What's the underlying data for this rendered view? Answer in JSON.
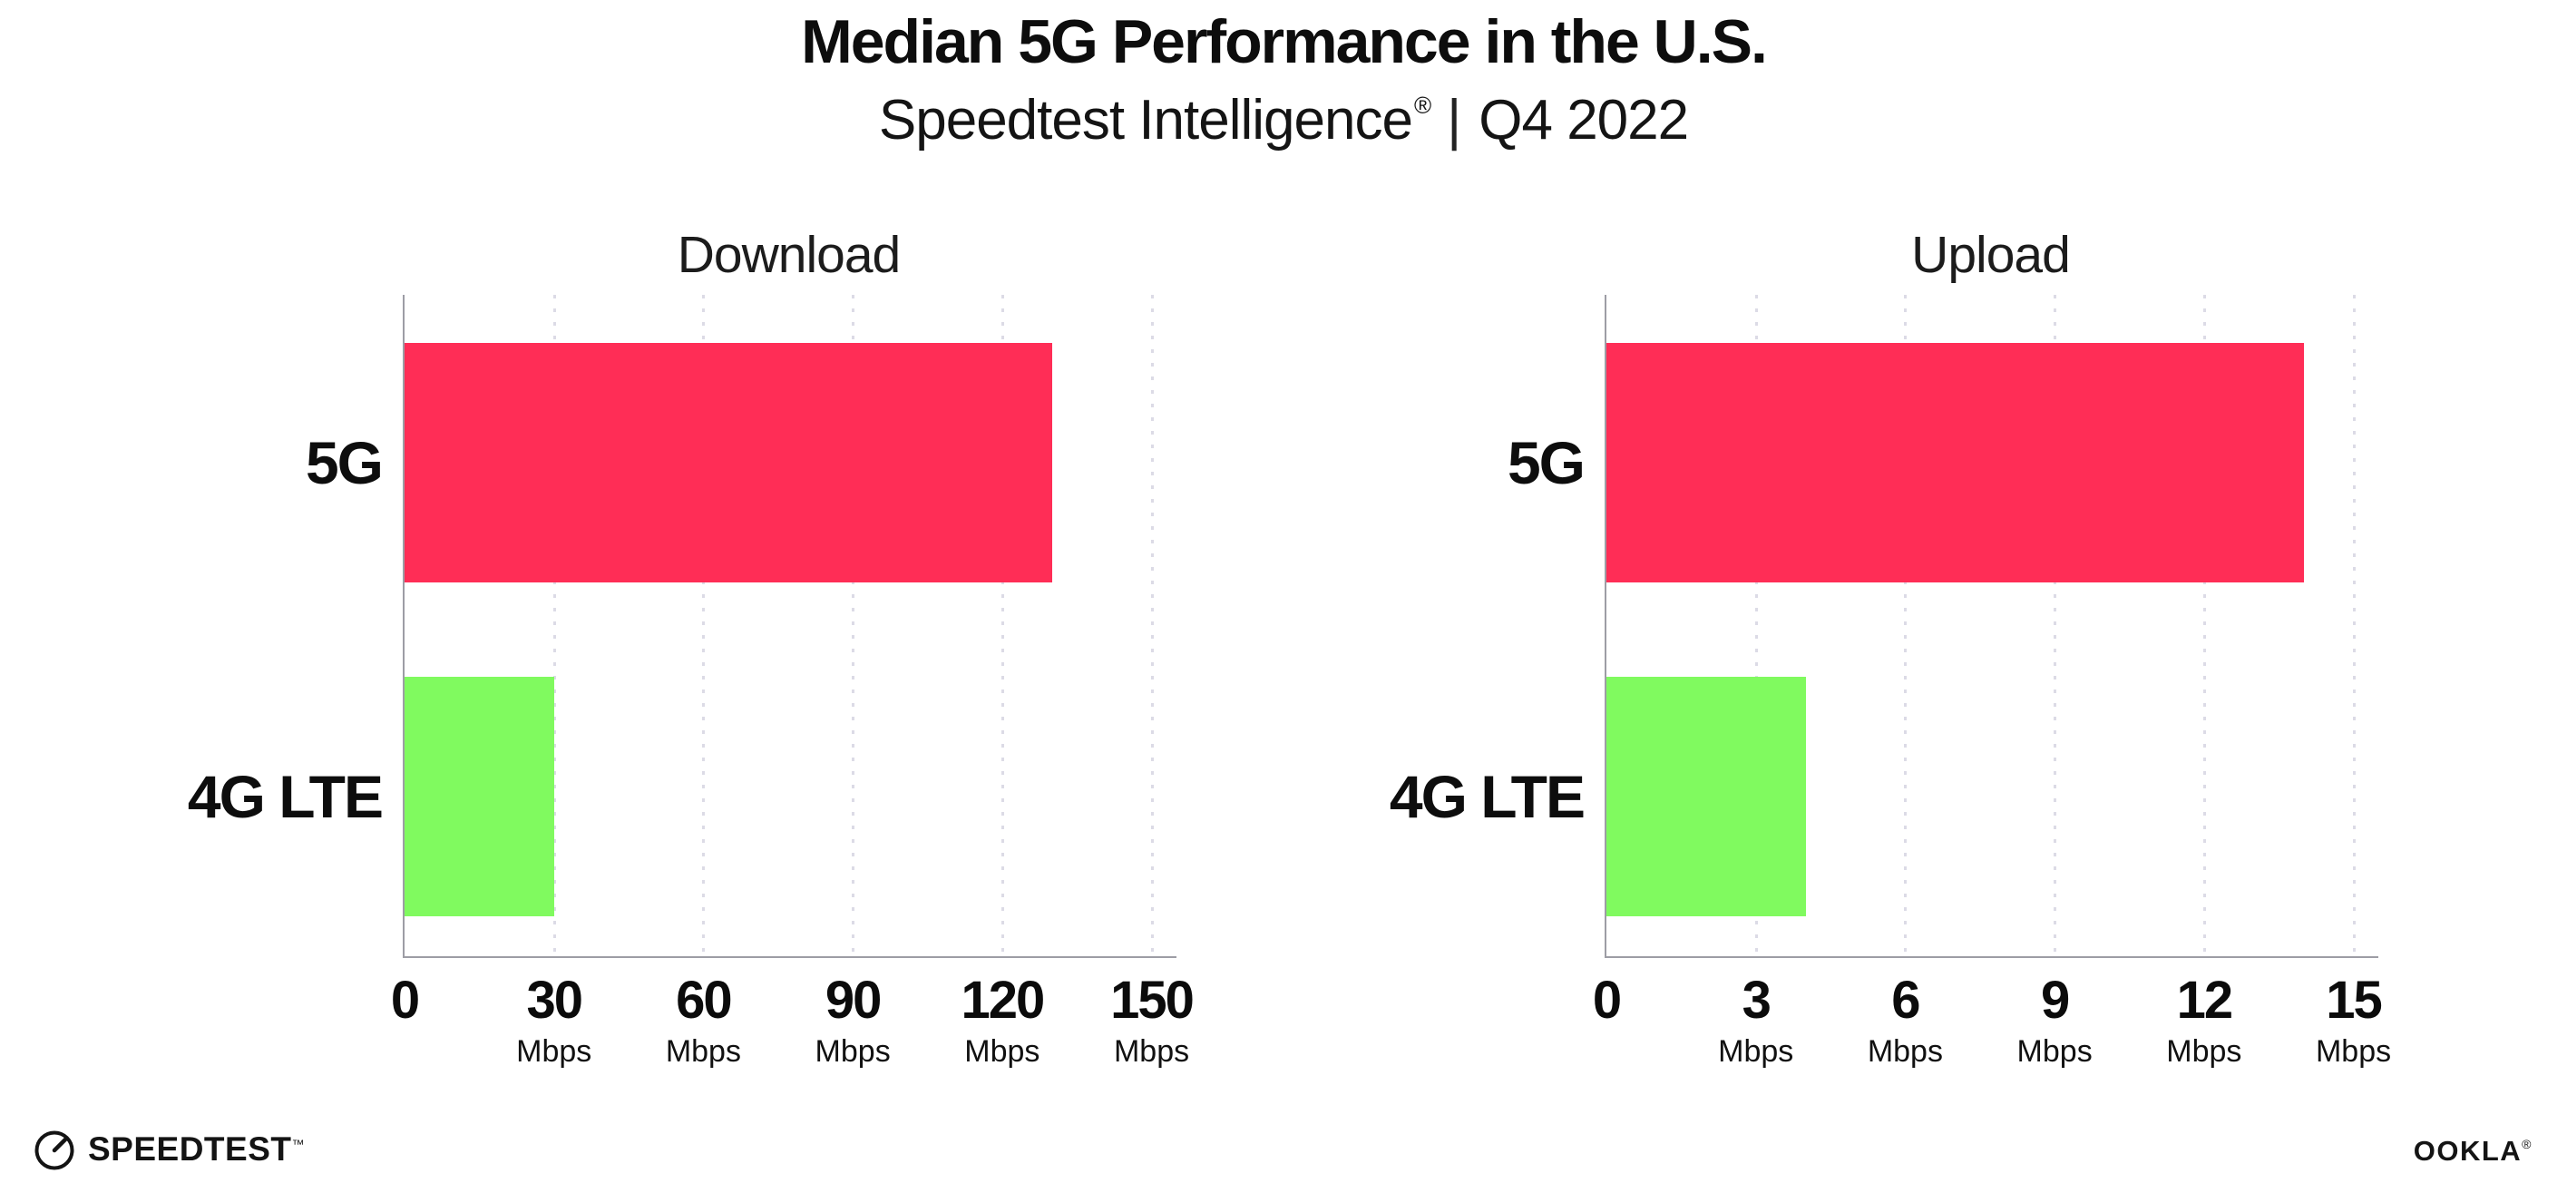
{
  "header": {
    "title": "Median 5G Performance in the U.S.",
    "subtitle": {
      "brand": "Speedtest Intelligence",
      "registered": "®",
      "separator": "|",
      "period": "Q4 2022"
    }
  },
  "chart_data": [
    {
      "type": "bar",
      "orientation": "horizontal",
      "title": "Download",
      "categories": [
        "5G",
        "4G LTE"
      ],
      "values": [
        130,
        30
      ],
      "value_unit": "Mbps",
      "xlim": [
        0,
        155
      ],
      "xticks": [
        0,
        30,
        60,
        90,
        120,
        150
      ],
      "tick_unit": "Mbps",
      "grid": "vertical-dotted",
      "legend": "none",
      "bar_colors": [
        "#ff2d56",
        "#80fa5f"
      ]
    },
    {
      "type": "bar",
      "orientation": "horizontal",
      "title": "Upload",
      "categories": [
        "5G",
        "4G LTE"
      ],
      "values": [
        14,
        4
      ],
      "value_unit": "Mbps",
      "xlim": [
        0,
        15.5
      ],
      "xticks": [
        0,
        3,
        6,
        9,
        12,
        15
      ],
      "tick_unit": "Mbps",
      "grid": "vertical-dotted",
      "legend": "none",
      "bar_colors": [
        "#ff2d56",
        "#80fa5f"
      ]
    }
  ],
  "colors": {
    "bar_5g": "#ff2d56",
    "bar_4g_lte": "#80fa5f",
    "axis": "#9d9da5",
    "grid": "#dcdbe6",
    "text": "#0d0d0d"
  },
  "footer": {
    "speedtest": {
      "label": "SPEEDTEST",
      "trademark": "™"
    },
    "ookla": {
      "label": "OOKLA",
      "registered": "®"
    }
  }
}
